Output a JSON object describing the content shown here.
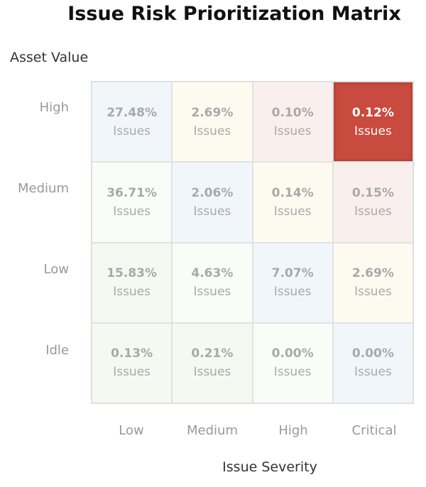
{
  "chart_data": {
    "type": "heatmap",
    "title": "Issue Risk Prioritization Matrix",
    "ylabel": "Asset Value",
    "xlabel": "Issue Severity",
    "x_categories": [
      "Low",
      "Medium",
      "High",
      "Critical"
    ],
    "y_categories": [
      "High",
      "Medium",
      "Low",
      "Idle"
    ],
    "cell_unit": "Issues",
    "values": [
      [
        "27.48%",
        "2.69%",
        "0.10%",
        "0.12%"
      ],
      [
        "36.71%",
        "2.06%",
        "0.14%",
        "0.15%"
      ],
      [
        "15.83%",
        "4.63%",
        "7.07%",
        "2.69%"
      ],
      [
        "0.13%",
        "0.21%",
        "0.00%",
        "0.00%"
      ]
    ],
    "colors": [
      [
        "#f1f6fb",
        "#fdfbf0",
        "#f9f0ed",
        "#c94a3e"
      ],
      [
        "#fafcf8",
        "#f1f6fb",
        "#fdfbf0",
        "#f9f0ed"
      ],
      [
        "#f6f8f2",
        "#fafcf8",
        "#f1f6fb",
        "#fdfbf0"
      ],
      [
        "#f6f8f2",
        "#f6f8f2",
        "#fafcf8",
        "#f1f6fb"
      ]
    ]
  }
}
